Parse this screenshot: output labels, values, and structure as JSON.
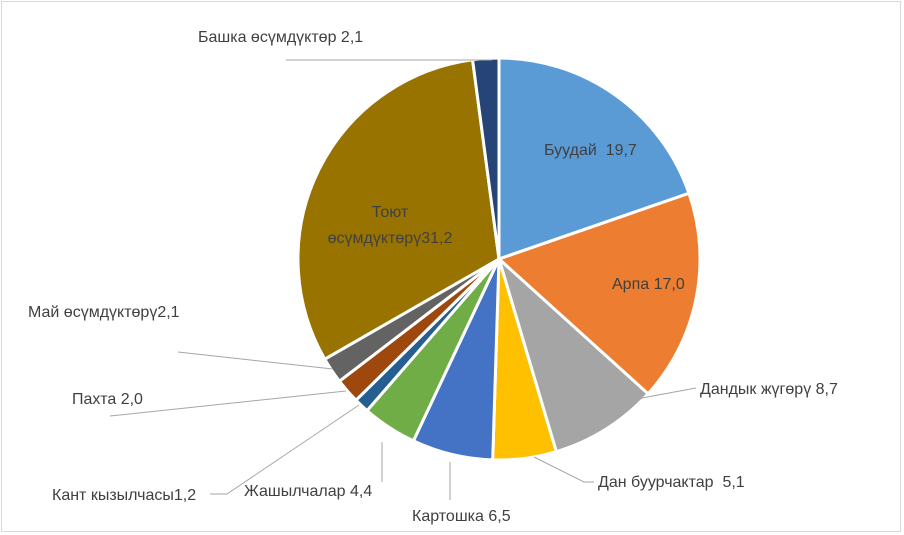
{
  "chart_data": {
    "type": "pie",
    "title": "",
    "start_angle_deg": 0,
    "direction": "clockwise",
    "legend": "none",
    "slices": [
      {
        "label": "Буудай  19,7",
        "value": 19.7,
        "color": "#5b9bd5"
      },
      {
        "label": "Арпа 17,0",
        "value": 17.0,
        "color": "#ed7d31"
      },
      {
        "label": "Дандык жүгөрү 8,7",
        "value": 8.7,
        "color": "#a5a5a5"
      },
      {
        "label": "Дан буурчактар  5,1",
        "value": 5.1,
        "color": "#ffc000"
      },
      {
        "label": "Картошка 6,5",
        "value": 6.5,
        "color": "#4472c4"
      },
      {
        "label": "Жашылчалар 4,4",
        "value": 4.4,
        "color": "#70ad47"
      },
      {
        "label": "Кант кызылчасы1,2",
        "value": 1.2,
        "color": "#255e91"
      },
      {
        "label": "Пахта 2,0",
        "value": 2.0,
        "color": "#9e480e"
      },
      {
        "label": "Май өсүмдүктөрү2,1",
        "value": 2.1,
        "color": "#636363"
      },
      {
        "label_lines": [
          "Тоют",
          "өсүмдүктөрү31,2"
        ],
        "value": 31.2,
        "color": "#997300"
      },
      {
        "label": "Башка өсүмдүктөр 2,1",
        "value": 2.1,
        "color": "#264478"
      }
    ]
  }
}
